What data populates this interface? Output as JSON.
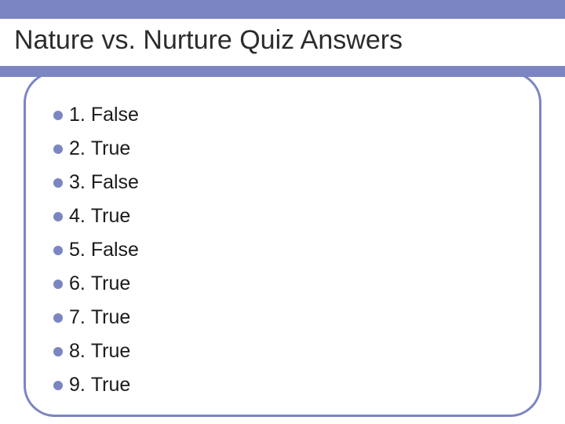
{
  "title": "Nature vs. Nurture Quiz Answers",
  "colors": {
    "accent": "#7b85c2",
    "text": "#1a1a1a",
    "title_text": "#2c2c2c",
    "background": "#ffffff"
  },
  "typography": {
    "title_fontsize": 34,
    "item_fontsize": 25,
    "font_family": "Arial"
  },
  "layout": {
    "top_band_height": 24,
    "underline_height": 14,
    "frame_border_radius": 40,
    "frame_border_width": 3,
    "bullet_diameter": 12
  },
  "answers": [
    {
      "num": "1.",
      "value": "False"
    },
    {
      "num": "2.",
      "value": "True"
    },
    {
      "num": "3.",
      "value": "False"
    },
    {
      "num": "4.",
      "value": "True"
    },
    {
      "num": "5.",
      "value": "False"
    },
    {
      "num": "6.",
      "value": "True"
    },
    {
      "num": "7.",
      "value": "True"
    },
    {
      "num": "8.",
      "value": "True"
    },
    {
      "num": "9.",
      "value": "True"
    }
  ]
}
